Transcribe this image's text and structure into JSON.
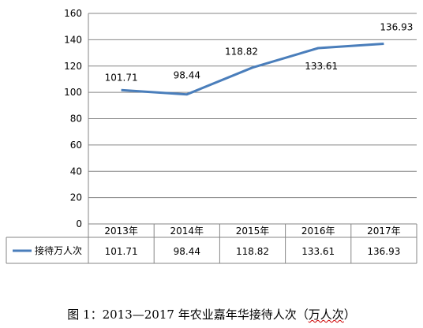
{
  "chart_data": {
    "type": "line",
    "categories": [
      "2013年",
      "2014年",
      "2015年",
      "2016年",
      "2017年"
    ],
    "series": [
      {
        "name": "接待万人次",
        "values": [
          101.71,
          98.44,
          118.82,
          133.61,
          136.93
        ]
      }
    ],
    "data_labels": [
      "101.71",
      "98.44",
      "118.82",
      "133.61",
      "136.93"
    ],
    "table_values": [
      "101.71",
      "98.44",
      "118.82",
      "133.61",
      "136.93"
    ],
    "yticks": [
      "0",
      "20",
      "40",
      "60",
      "80",
      "100",
      "120",
      "140",
      "160"
    ],
    "ylim": [
      0,
      160
    ],
    "grid": true,
    "legend": "data-table",
    "line_color": "#4a7ebb"
  },
  "caption": {
    "main": "图 1：2013—2017 年农业嘉年华接待人次（",
    "wavy": "万人次",
    "end": "）"
  }
}
